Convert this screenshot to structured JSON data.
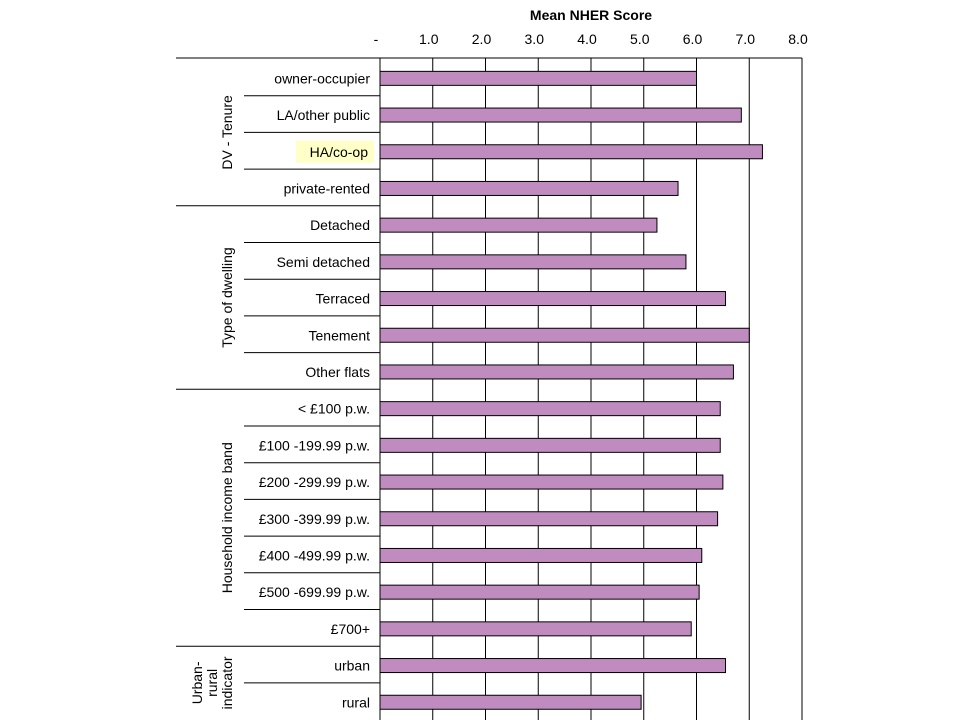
{
  "chart_data": {
    "type": "bar",
    "orientation": "horizontal",
    "title": "Mean NHER Score",
    "x_tick_labels": [
      "-",
      "1.0",
      "2.0",
      "3.0",
      "4.0",
      "5.0",
      "6.0",
      "7.0",
      "8.0"
    ],
    "xlim": [
      0,
      8
    ],
    "grid": true,
    "bar_color": "#c08cc0",
    "highlight_color": "#ffffc8",
    "groups": [
      {
        "label_lines": [
          "DV - Tenure"
        ],
        "items": [
          {
            "label": "owner-occupier",
            "value": 6.0
          },
          {
            "label": "LA/other public",
            "value": 6.85
          },
          {
            "label": "HA/co-op",
            "value": 7.25,
            "highlight": true
          },
          {
            "label": "private-rented",
            "value": 5.65
          }
        ]
      },
      {
        "label_lines": [
          "Type of dwelling"
        ],
        "items": [
          {
            "label": "Detached",
            "value": 5.25
          },
          {
            "label": "Semi detached",
            "value": 5.8
          },
          {
            "label": "Terraced",
            "value": 6.55
          },
          {
            "label": "Tenement",
            "value": 7.0
          },
          {
            "label": "Other flats",
            "value": 6.7
          }
        ]
      },
      {
        "label_lines": [
          "Household income band"
        ],
        "items": [
          {
            "label": "< £100 p.w.",
            "value": 6.45
          },
          {
            "label": "£100 -199.99 p.w.",
            "value": 6.45
          },
          {
            "label": "£200 -299.99 p.w.",
            "value": 6.5
          },
          {
            "label": "£300 -399.99 p.w.",
            "value": 6.4
          },
          {
            "label": "£400 -499.99 p.w.",
            "value": 6.1
          },
          {
            "label": "£500 -699.99 p.w.",
            "value": 6.05
          },
          {
            "label": "£700+",
            "value": 5.9
          }
        ]
      },
      {
        "label_lines": [
          "Urban-",
          "rural",
          "indicator"
        ],
        "items": [
          {
            "label": "urban",
            "value": 6.55
          },
          {
            "label": "rural",
            "value": 4.95
          }
        ]
      }
    ]
  }
}
